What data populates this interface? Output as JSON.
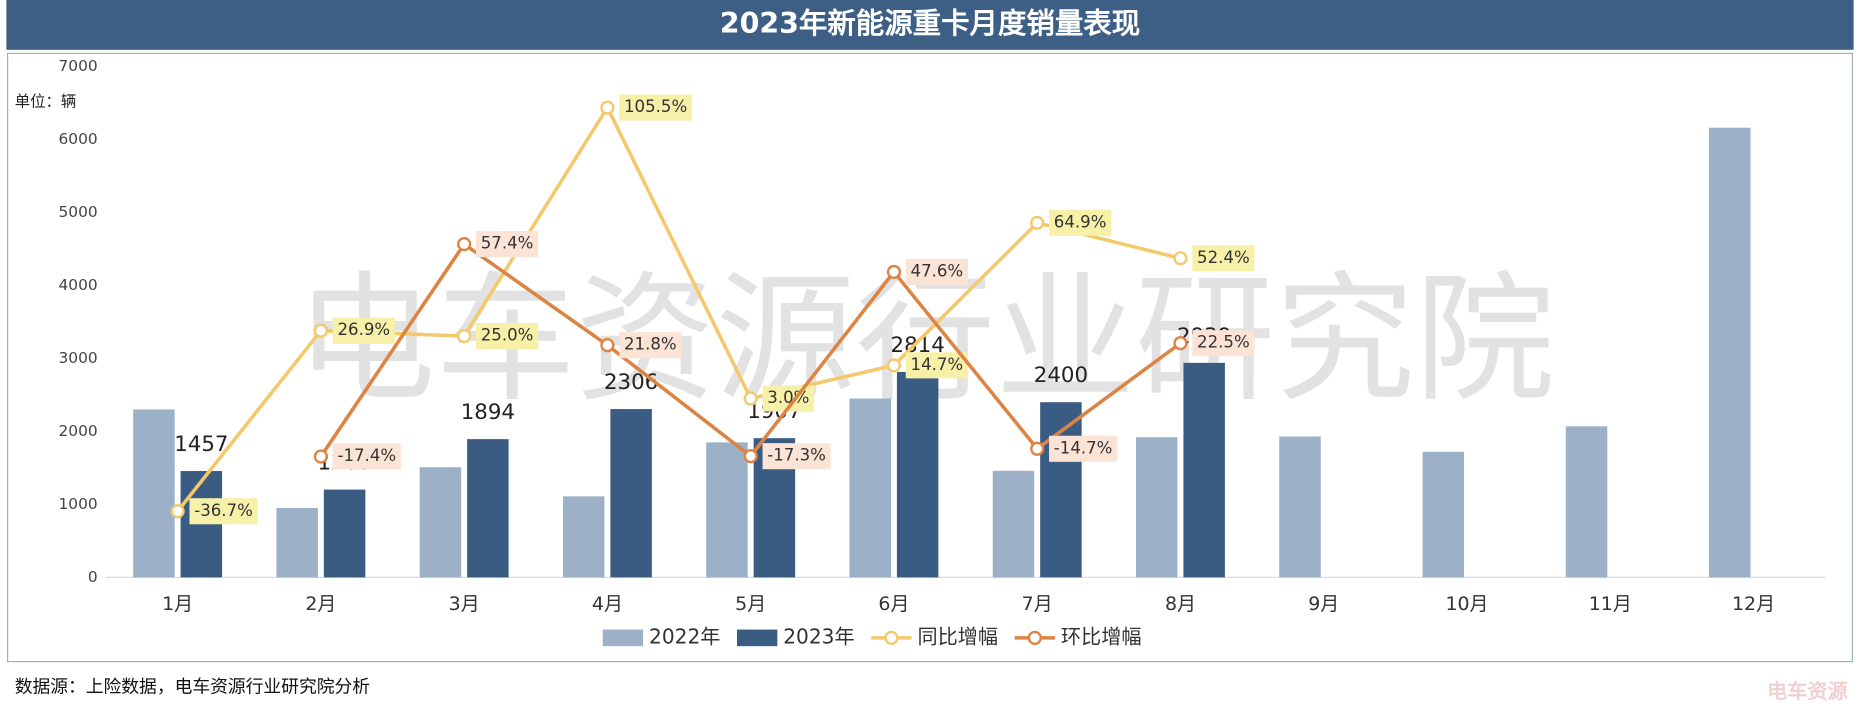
{
  "chart_data": {
    "type": "bar",
    "title": "2023年新能源重卡月度销量表现",
    "unit_label": "单位：辆",
    "source": "数据源：上险数据，电车资源行业研究院分析",
    "watermark": "电车资源行业研究院",
    "logo": "电车资源",
    "categories": [
      "1月",
      "2月",
      "3月",
      "4月",
      "5月",
      "6月",
      "7月",
      "8月",
      "9月",
      "10月",
      "11月",
      "12月"
    ],
    "ylim": [
      0,
      7000
    ],
    "yticks": [
      0,
      1000,
      2000,
      3000,
      4000,
      5000,
      6000,
      7000
    ],
    "y2lim": [
      -60,
      120
    ],
    "series": [
      {
        "name": "2022年",
        "type": "bar",
        "color": "#9cb1c8",
        "values": [
          2300,
          950,
          1510,
          1110,
          1850,
          2450,
          1460,
          1920,
          1930,
          1720,
          2070,
          6160
        ]
      },
      {
        "name": "2023年",
        "type": "bar",
        "color": "#3b5c82",
        "values": [
          1457,
          1203,
          1894,
          2306,
          1907,
          2814,
          2400,
          2939,
          null,
          null,
          null,
          null
        ],
        "show_labels": true
      },
      {
        "name": "同比增幅",
        "type": "line",
        "axis": "y2",
        "color": "#f3c96b",
        "label_bg": "#f7f0a8",
        "values": [
          -36.7,
          26.9,
          25.0,
          105.5,
          3.0,
          14.7,
          64.9,
          52.4,
          null,
          null,
          null,
          null
        ],
        "value_labels": [
          "-36.7%",
          "26.9%",
          "25.0%",
          "105.5%",
          "3.0%",
          "14.7%",
          "64.9%",
          "52.4%",
          null,
          null,
          null,
          null
        ]
      },
      {
        "name": "环比增幅",
        "type": "line",
        "axis": "y2",
        "color": "#dc8444",
        "label_bg": "#fbe3d6",
        "values": [
          null,
          -17.4,
          57.4,
          21.8,
          -17.3,
          47.6,
          -14.7,
          22.5,
          null,
          null,
          null,
          null
        ],
        "value_labels": [
          null,
          "-17.4%",
          "57.4%",
          "21.8%",
          "-17.3%",
          "47.6%",
          "-14.7%",
          "22.5%",
          null,
          null,
          null,
          null
        ]
      }
    ]
  }
}
